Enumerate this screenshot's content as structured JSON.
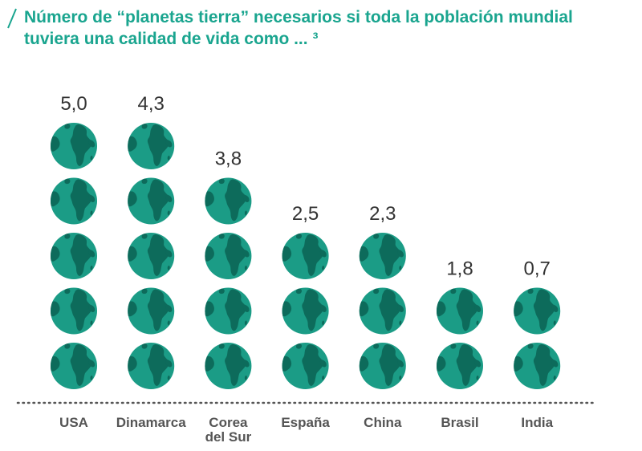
{
  "title": {
    "line1": "Número de “planetas tierra” necesarios si toda la población mundial",
    "line2": "tuviera una calidad de vida como ... ³"
  },
  "colors": {
    "accent": "#1aa58f",
    "ocean": "#1b9c86",
    "land": "#0d6b5b",
    "baseline": "#555555"
  },
  "chart_data": {
    "type": "bar",
    "mark": "globe-icons",
    "title": "Número de “planetas tierra” necesarios si toda la población mundial tuviera una calidad de vida como ... ³",
    "categories": [
      "USA",
      "Dinamarca",
      "Corea\ndel Sur",
      "España",
      "China",
      "Brasil",
      "India"
    ],
    "values": [
      5.0,
      4.3,
      3.8,
      2.5,
      2.3,
      1.8,
      0.7
    ],
    "value_labels": [
      "5,0",
      "4,3",
      "3,8",
      "2,5",
      "2,3",
      "1,8",
      "0,7"
    ],
    "globe_counts": [
      5,
      5,
      4,
      3,
      3,
      2,
      2
    ],
    "xlabel": "",
    "ylabel": ""
  }
}
